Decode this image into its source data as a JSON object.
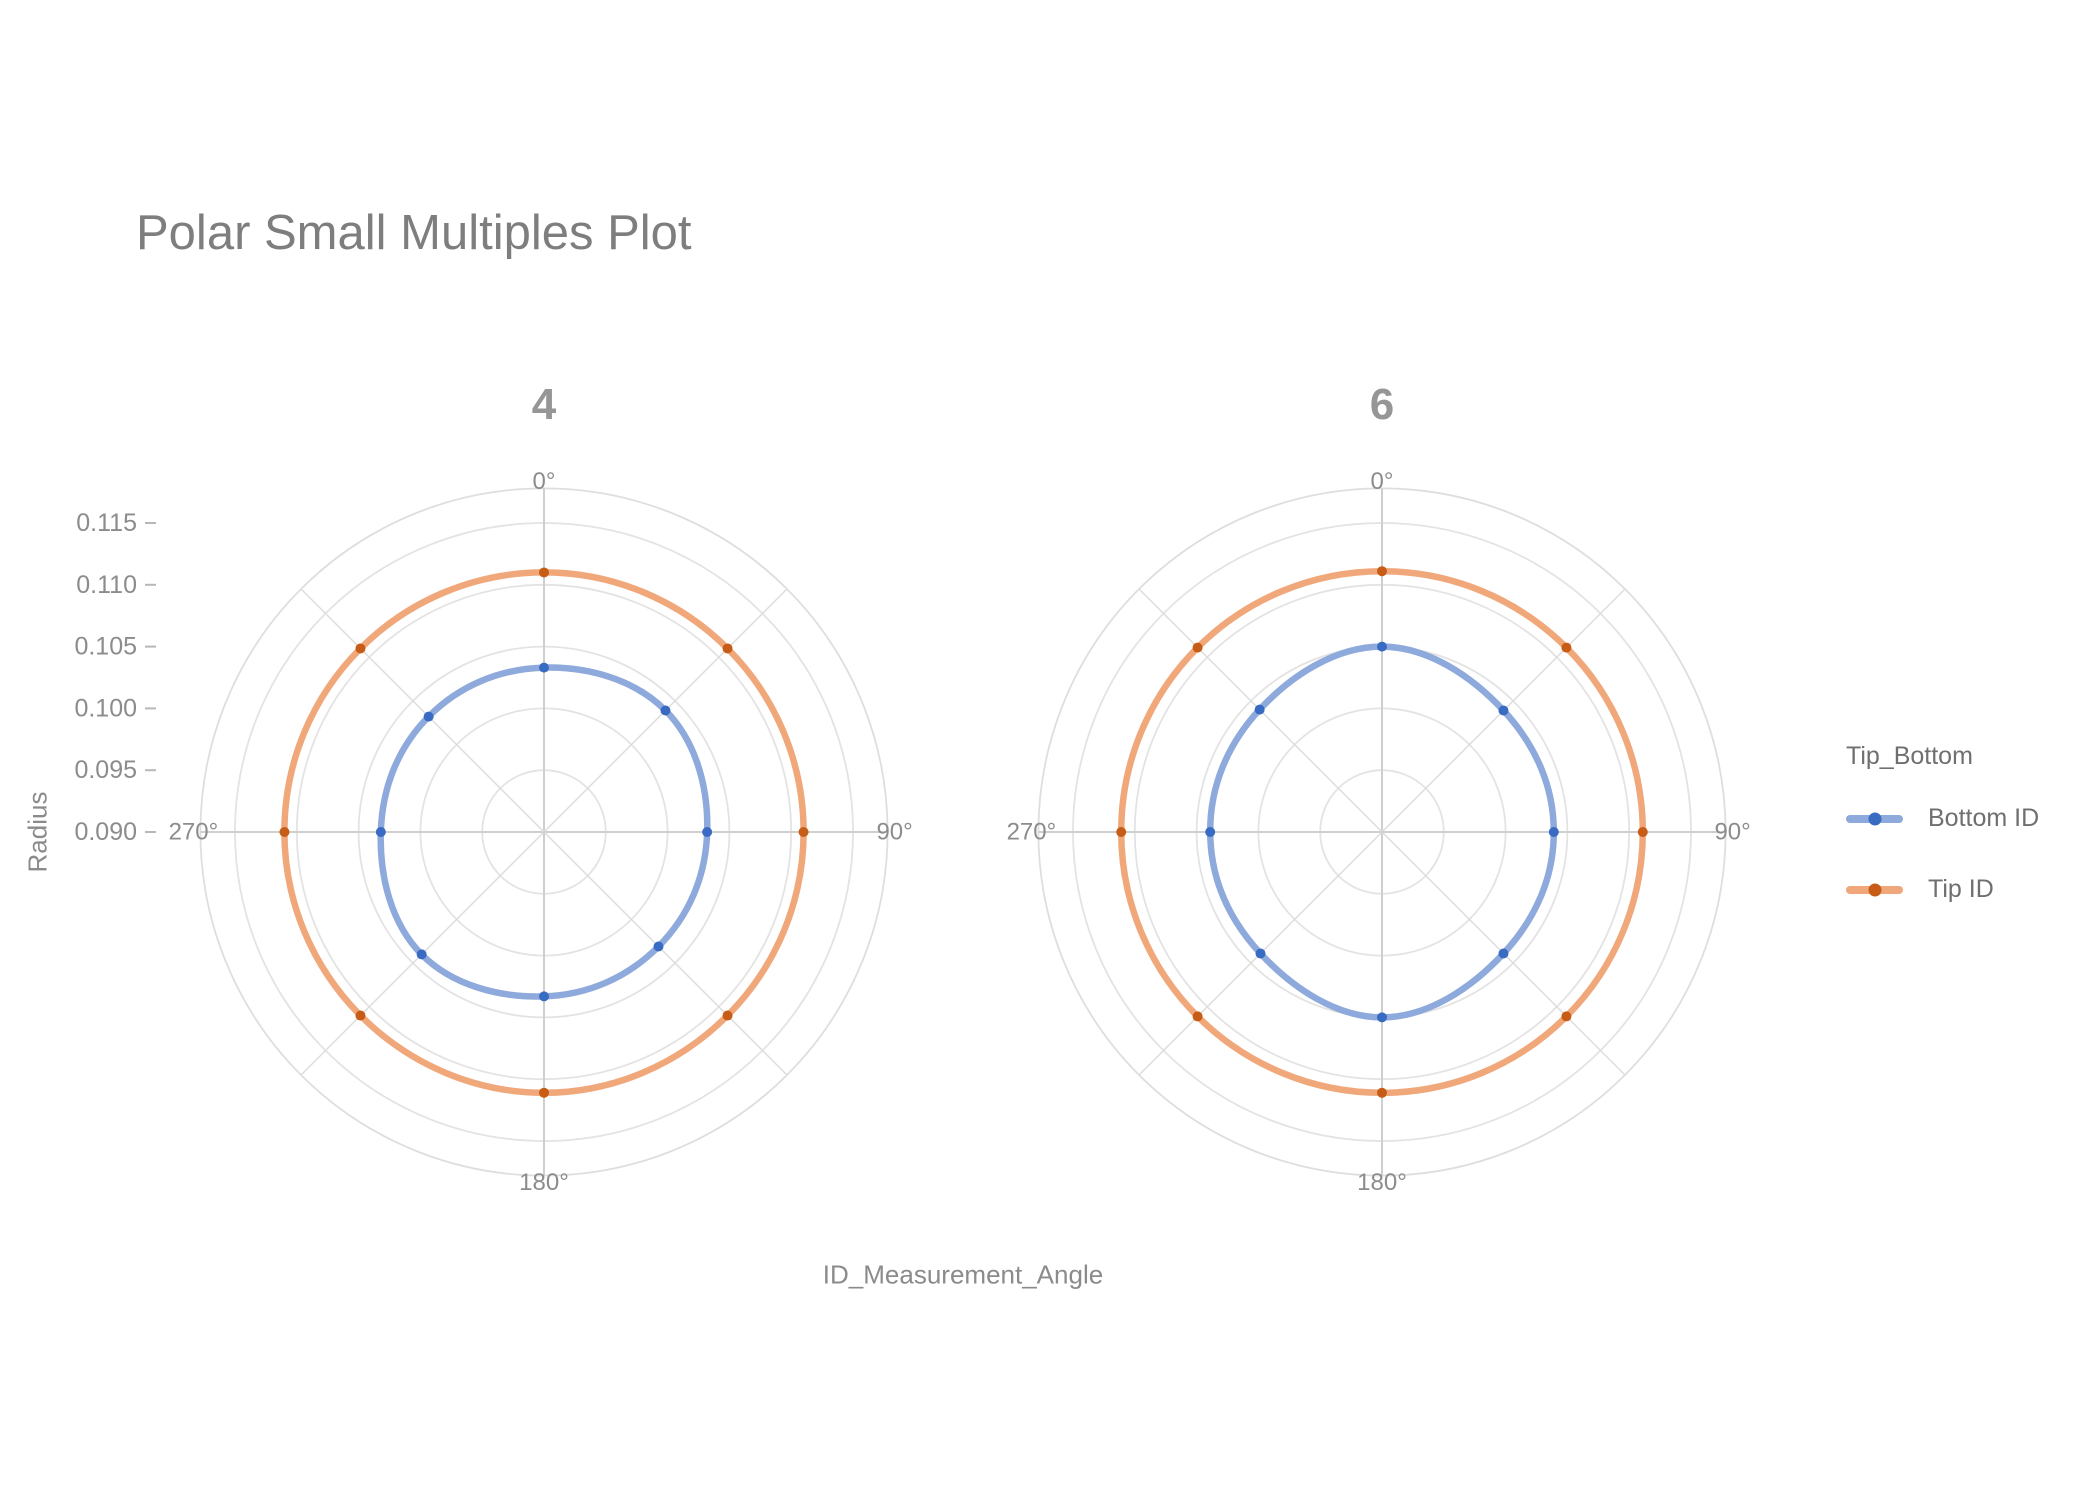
{
  "chart_data": {
    "type": "line",
    "subtype": "polar-small-multiples",
    "title": "Polar Small Multiples Plot",
    "angular_axis_title": "ID_Measurement_Angle",
    "angles_deg": [
      0,
      45,
      90,
      135,
      180,
      225,
      270,
      315
    ],
    "angular_tick_labels": [
      {
        "angle": 0,
        "label": "0°"
      },
      {
        "angle": 90,
        "label": "90°"
      },
      {
        "angle": 180,
        "label": "180°"
      },
      {
        "angle": 270,
        "label": "270°"
      }
    ],
    "radial_axis": {
      "title": "Radius",
      "min": 0.09,
      "max": 0.1178,
      "tick_values": [
        0.09,
        0.095,
        0.1,
        0.105,
        0.11,
        0.115
      ],
      "tick_labels": [
        "0.090",
        "0.095",
        "0.100",
        "0.105",
        "0.110",
        "0.115"
      ],
      "grid_values": [
        0.095,
        0.1,
        0.105,
        0.11,
        0.115
      ]
    },
    "facets": [
      {
        "label": "4",
        "series": [
          {
            "name": "Bottom ID",
            "values": [
              0.1033,
              0.1039,
              0.1032,
              0.1031,
              0.1033,
              0.104,
              0.1032,
              0.1032
            ]
          },
          {
            "name": "Tip ID",
            "values": [
              0.111,
              0.111,
              0.111,
              0.111,
              0.1111,
              0.111,
              0.111,
              0.111
            ]
          }
        ]
      },
      {
        "label": "6",
        "series": [
          {
            "name": "Bottom ID",
            "values": [
              0.105,
              0.1039,
              0.1039,
              0.1039,
              0.105,
              0.1039,
              0.1039,
              0.104
            ]
          },
          {
            "name": "Tip ID",
            "values": [
              0.1111,
              0.1111,
              0.1111,
              0.1111,
              0.1111,
              0.1111,
              0.1111,
              0.1111
            ]
          }
        ]
      }
    ],
    "legend": {
      "title": "Tip_Bottom",
      "entries": [
        {
          "label": "Bottom ID",
          "line_color": "#8EA9DB",
          "marker_color": "#3A6BC2"
        },
        {
          "label": "Tip ID",
          "line_color": "#F0A87B",
          "marker_color": "#C65C15"
        }
      ]
    },
    "grid": {
      "circle_color": "#e3e3e3",
      "outer_ring_color": "#dedede",
      "axis_spoke_color": "#cfcfcf",
      "diag_spoke_color": "#dcdcdc",
      "tick_mark_color": "#b8b8b8",
      "label_color": "#8c8c8c"
    }
  }
}
